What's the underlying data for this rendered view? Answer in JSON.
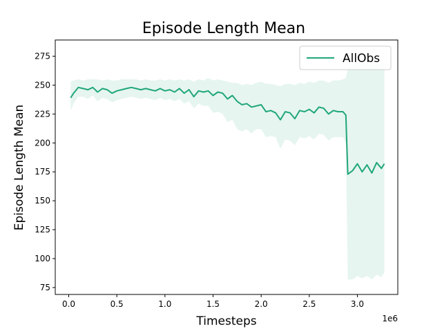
{
  "chart_data": {
    "type": "line",
    "title": "Episode Length Mean",
    "xlabel": "Timesteps",
    "ylabel": "Episode Length Mean",
    "x_offset_label": "1e6",
    "xlim": [
      -0.14,
      3.42
    ],
    "ylim": [
      69,
      289
    ],
    "x_ticks": [
      0.0,
      0.5,
      1.0,
      1.5,
      2.0,
      2.5,
      3.0
    ],
    "x_tick_labels": [
      "0.0",
      "0.5",
      "1.0",
      "1.5",
      "2.0",
      "2.5",
      "3.0"
    ],
    "y_ticks": [
      75,
      100,
      125,
      150,
      175,
      200,
      225,
      250,
      275
    ],
    "y_tick_labels": [
      "75",
      "100",
      "125",
      "150",
      "175",
      "200",
      "225",
      "250",
      "275"
    ],
    "grid": false,
    "legend": {
      "position": "top-right",
      "entries": [
        "AllObs"
      ]
    },
    "series": [
      {
        "name": "AllObs",
        "color": "#1fa67a",
        "band_color": "#e6f5ef",
        "x": [
          0.02,
          0.05,
          0.1,
          0.15,
          0.2,
          0.25,
          0.3,
          0.35,
          0.4,
          0.45,
          0.5,
          0.55,
          0.6,
          0.65,
          0.7,
          0.75,
          0.8,
          0.85,
          0.9,
          0.95,
          1.0,
          1.05,
          1.1,
          1.15,
          1.2,
          1.25,
          1.3,
          1.35,
          1.4,
          1.45,
          1.5,
          1.55,
          1.6,
          1.65,
          1.7,
          1.75,
          1.8,
          1.85,
          1.9,
          1.95,
          2.0,
          2.05,
          2.1,
          2.15,
          2.2,
          2.25,
          2.3,
          2.35,
          2.4,
          2.45,
          2.5,
          2.55,
          2.6,
          2.65,
          2.7,
          2.75,
          2.8,
          2.85,
          2.88,
          2.9,
          2.95,
          3.0,
          3.05,
          3.1,
          3.15,
          3.2,
          3.25,
          3.28
        ],
        "mean": [
          239,
          243,
          248,
          247,
          246,
          248,
          244,
          247,
          246,
          243,
          245,
          246,
          247,
          248,
          247,
          246,
          247,
          246,
          245,
          247,
          245,
          246,
          244,
          247,
          243,
          246,
          240,
          245,
          244,
          245,
          241,
          244,
          243,
          238,
          241,
          236,
          233,
          234,
          231,
          232,
          233,
          227,
          228,
          226,
          220,
          227,
          226,
          221,
          228,
          227,
          229,
          226,
          231,
          230,
          225,
          228,
          227,
          227,
          224,
          173,
          176,
          182,
          175,
          181,
          174,
          183,
          178,
          182
        ],
        "upper": [
          253,
          254,
          255,
          254,
          255,
          255,
          255,
          254,
          255,
          254,
          254,
          255,
          255,
          255,
          255,
          254,
          255,
          254,
          254,
          255,
          254,
          255,
          254,
          255,
          254,
          255,
          253,
          255,
          254,
          256,
          254,
          255,
          254,
          253,
          252,
          252,
          250,
          251,
          250,
          252,
          253,
          251,
          251,
          250,
          249,
          251,
          251,
          250,
          252,
          251,
          253,
          252,
          254,
          254,
          252,
          254,
          254,
          255,
          256,
          265,
          268,
          270,
          268,
          270,
          267,
          270,
          268,
          272
        ],
        "lower": [
          228,
          234,
          240,
          240,
          238,
          241,
          236,
          239,
          238,
          235,
          237,
          238,
          239,
          240,
          239,
          238,
          239,
          238,
          237,
          239,
          237,
          238,
          236,
          238,
          234,
          236,
          230,
          234,
          232,
          232,
          226,
          227,
          225,
          218,
          220,
          212,
          210,
          212,
          208,
          212,
          212,
          205,
          206,
          205,
          195,
          203,
          202,
          198,
          205,
          204,
          206,
          203,
          208,
          207,
          202,
          205,
          205,
          205,
          200,
          82,
          82,
          85,
          83,
          85,
          82,
          86,
          84,
          88
        ]
      }
    ]
  }
}
